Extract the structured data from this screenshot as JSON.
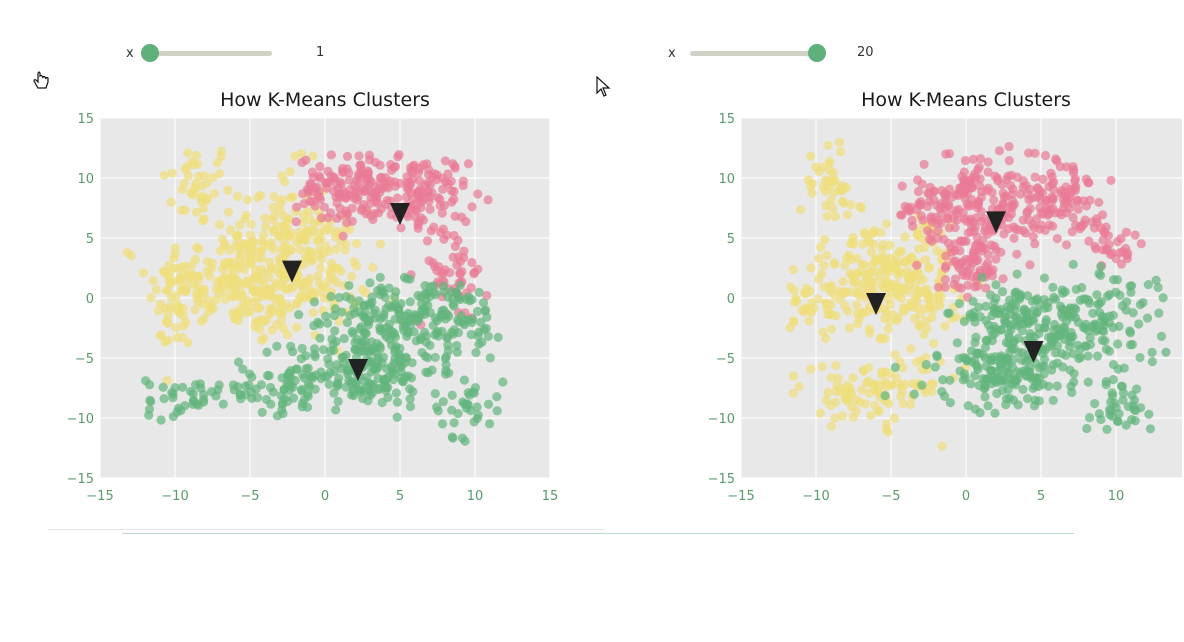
{
  "sliders": [
    {
      "name": "x",
      "value": "1"
    },
    {
      "name": "x",
      "value": "20"
    }
  ],
  "chart_data": [
    {
      "type": "scatter",
      "title": "How K-Means Clusters",
      "xlabel": "",
      "ylabel": "",
      "xlim": [
        -15,
        15
      ],
      "ylim": [
        -15,
        15
      ],
      "xticks": [
        -15,
        -10,
        -5,
        0,
        5,
        10,
        15
      ],
      "yticks": [
        -15,
        -10,
        -5,
        0,
        5,
        10,
        15
      ],
      "grid": true,
      "series": [
        {
          "color": "#f0de7a",
          "blobs": [
            [
              -8.5,
              9.5,
              1.2,
              1.8,
              40
            ],
            [
              -6.5,
              1.5,
              2.6,
              2.0,
              170
            ],
            [
              -3.0,
              6.0,
              1.6,
              2.5,
              80
            ],
            [
              -1.0,
              2.5,
              2.0,
              2.4,
              130
            ],
            [
              -3.0,
              -1.0,
              1.3,
              1.0,
              40
            ],
            [
              -10.0,
              -1.5,
              1.0,
              2.0,
              30
            ]
          ]
        },
        {
          "color": "#e97a96",
          "blobs": [
            [
              1.2,
              9.0,
              1.5,
              1.4,
              110
            ],
            [
              6.5,
              8.5,
              1.5,
              1.7,
              110
            ],
            [
              8.5,
              2.0,
              1.2,
              2.0,
              50
            ],
            [
              4.0,
              9.5,
              1.0,
              1.0,
              30
            ]
          ]
        },
        {
          "color": "#63b57c",
          "blobs": [
            [
              2.5,
              -6.0,
              2.5,
              1.5,
              180
            ],
            [
              7.0,
              -1.8,
              2.8,
              1.7,
              160
            ],
            [
              -4.0,
              -7.5,
              3.0,
              1.0,
              70
            ],
            [
              9.5,
              -9.0,
              1.2,
              1.3,
              35
            ],
            [
              -9.5,
              -8.5,
              1.2,
              1.0,
              25
            ],
            [
              3.5,
              -1.5,
              1.8,
              1.2,
              60
            ]
          ]
        }
      ],
      "centroids": [
        [
          5.0,
          7.0
        ],
        [
          -2.2,
          2.2
        ],
        [
          2.2,
          -6.0
        ]
      ],
      "centroid_color": "#222222"
    },
    {
      "type": "scatter",
      "title": "How K-Means Clusters",
      "xlabel": "",
      "ylabel": "",
      "xlim": [
        -15,
        15
      ],
      "ylim": [
        -15,
        15
      ],
      "xticks": [
        -15,
        -10,
        -5,
        0,
        5,
        10,
        15
      ],
      "yticks": [
        -15,
        -10,
        -5,
        0,
        5,
        10,
        15
      ],
      "grid": true,
      "series": [
        {
          "color": "#f0de7a",
          "blobs": [
            [
              -9.0,
              9.5,
              1.0,
              1.8,
              40
            ],
            [
              -6.5,
              1.5,
              2.2,
              2.0,
              160
            ],
            [
              -3.0,
              1.0,
              1.5,
              2.5,
              100
            ],
            [
              -7.0,
              -8.0,
              2.0,
              1.3,
              70
            ],
            [
              -4.0,
              -6.5,
              1.5,
              1.0,
              30
            ],
            [
              -10.0,
              -1.0,
              1.0,
              1.5,
              30
            ]
          ]
        },
        {
          "color": "#e97a96",
          "blobs": [
            [
              1.0,
              7.5,
              2.0,
              2.3,
              190
            ],
            [
              6.0,
              8.0,
              1.6,
              1.7,
              110
            ],
            [
              0.5,
              2.5,
              1.0,
              1.2,
              60
            ],
            [
              -3.0,
              7.5,
              1.0,
              1.0,
              30
            ],
            [
              9.5,
              4.5,
              1.0,
              1.0,
              30
            ]
          ]
        },
        {
          "color": "#63b57c",
          "blobs": [
            [
              3.0,
              -6.0,
              2.5,
              1.5,
              180
            ],
            [
              7.0,
              -1.5,
              2.8,
              1.8,
              180
            ],
            [
              2.5,
              -1.5,
              1.5,
              1.2,
              60
            ],
            [
              10.0,
              -9.0,
              1.0,
              1.3,
              35
            ]
          ]
        }
      ],
      "centroids": [
        [
          2.0,
          6.3
        ],
        [
          -6.0,
          -0.5
        ],
        [
          4.5,
          -4.5
        ]
      ],
      "centroid_color": "#222222"
    }
  ]
}
